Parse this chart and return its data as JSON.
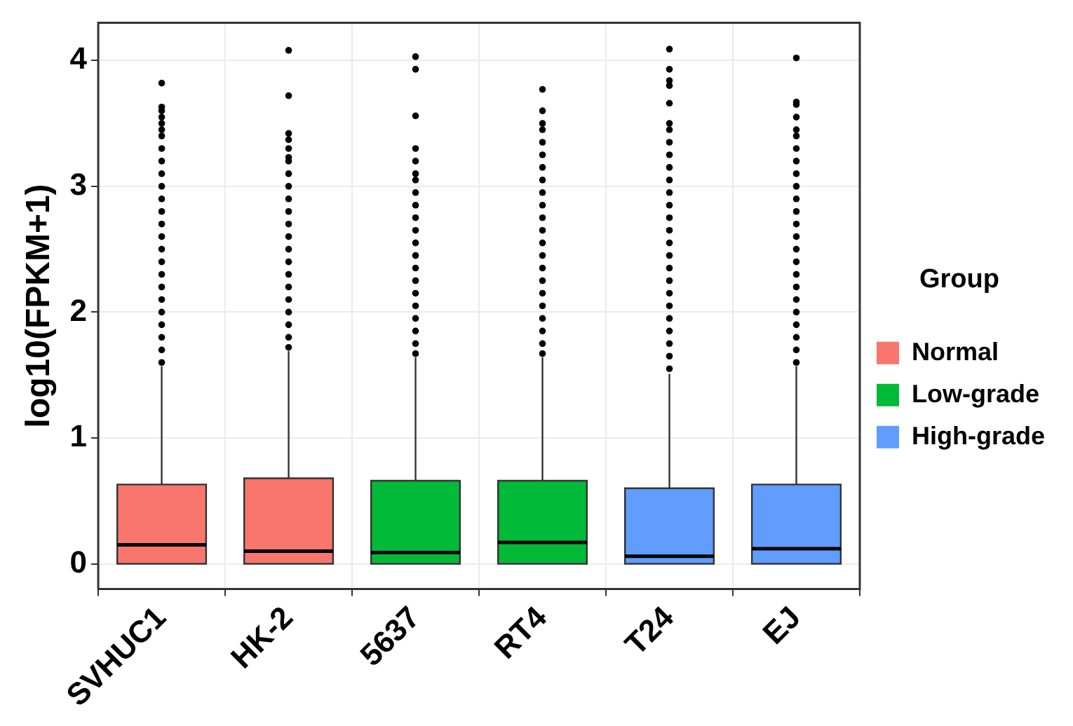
{
  "chart_data": {
    "type": "box",
    "ylabel": "log10(FPKM+1)",
    "legend_title": "Group",
    "legend": "right",
    "grid": true,
    "categories": [
      "SVHUC1",
      "HK-2",
      "5637",
      "RT4",
      "T24",
      "EJ"
    ],
    "ylim": [
      -0.2,
      4.3
    ],
    "yticks": [
      0,
      1,
      2,
      3,
      4
    ],
    "series": [
      {
        "name": "Normal",
        "color": "#f8766d",
        "boxes": [
          {
            "low": 0,
            "q1": 0,
            "median": 0.15,
            "q3": 0.63,
            "high": 1.57,
            "outliers": [
              1.6,
              1.7,
              1.8,
              1.9,
              2.0,
              2.1,
              2.2,
              2.3,
              2.4,
              2.5,
              2.6,
              2.7,
              2.8,
              2.9,
              3.0,
              3.1,
              3.2,
              3.3,
              3.4,
              3.45,
              3.5,
              3.55,
              3.6,
              3.63,
              3.82
            ]
          },
          {
            "low": 0,
            "q1": 0,
            "median": 0.1,
            "q3": 0.68,
            "high": 1.69,
            "outliers": [
              1.72,
              1.8,
              1.9,
              2.0,
              2.1,
              2.2,
              2.3,
              2.4,
              2.5,
              2.6,
              2.7,
              2.8,
              2.9,
              3.0,
              3.1,
              3.2,
              3.23,
              3.3,
              3.37,
              3.42,
              3.72,
              4.08
            ]
          },
          null,
          null,
          null,
          null
        ]
      },
      {
        "name": "Low-grade",
        "color": "#00ba38",
        "boxes": [
          null,
          null,
          {
            "low": 0,
            "q1": 0,
            "median": 0.09,
            "q3": 0.66,
            "high": 1.64,
            "outliers": [
              1.67,
              1.75,
              1.85,
              1.95,
              2.05,
              2.15,
              2.25,
              2.35,
              2.45,
              2.55,
              2.65,
              2.75,
              2.85,
              2.95,
              3.05,
              3.1,
              3.2,
              3.3,
              3.56,
              3.93,
              4.03
            ]
          },
          {
            "low": 0,
            "q1": 0,
            "median": 0.17,
            "q3": 0.66,
            "high": 1.64,
            "outliers": [
              1.67,
              1.75,
              1.85,
              1.95,
              2.05,
              2.15,
              2.25,
              2.35,
              2.45,
              2.55,
              2.65,
              2.75,
              2.85,
              2.95,
              3.05,
              3.15,
              3.25,
              3.35,
              3.45,
              3.5,
              3.6,
              3.77
            ]
          },
          null,
          null
        ]
      },
      {
        "name": "High-grade",
        "color": "#619cff",
        "boxes": [
          null,
          null,
          null,
          null,
          {
            "low": 0,
            "q1": 0,
            "median": 0.06,
            "q3": 0.6,
            "high": 1.51,
            "outliers": [
              1.55,
              1.65,
              1.75,
              1.85,
              1.95,
              2.05,
              2.15,
              2.25,
              2.35,
              2.45,
              2.55,
              2.65,
              2.75,
              2.85,
              2.95,
              3.05,
              3.15,
              3.25,
              3.35,
              3.45,
              3.5,
              3.66,
              3.8,
              3.84,
              3.93,
              4.09
            ]
          },
          {
            "low": 0,
            "q1": 0,
            "median": 0.12,
            "q3": 0.63,
            "high": 1.57,
            "outliers": [
              1.6,
              1.7,
              1.8,
              1.9,
              2.0,
              2.1,
              2.2,
              2.3,
              2.4,
              2.5,
              2.6,
              2.7,
              2.8,
              2.9,
              3.0,
              3.1,
              3.2,
              3.3,
              3.4,
              3.45,
              3.55,
              3.65,
              3.67,
              4.02
            ]
          }
        ]
      }
    ]
  }
}
